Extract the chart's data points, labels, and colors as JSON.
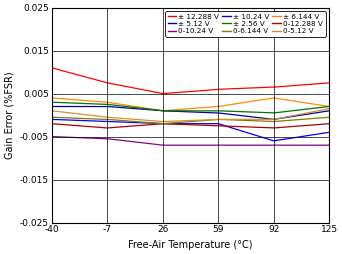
{
  "title": "",
  "xlabel": "Free-Air Temperature (°C)",
  "ylabel": "Gain Error (%FSR)",
  "xlim": [
    -40,
    125
  ],
  "ylim": [
    -0.025,
    0.025
  ],
  "xticks": [
    -40,
    -7,
    26,
    59,
    92,
    125
  ],
  "yticks": [
    -0.025,
    -0.015,
    -0.005,
    0.005,
    0.015,
    0.025
  ],
  "x_temps": [
    -40,
    -7,
    26,
    59,
    92,
    125
  ],
  "series": [
    {
      "label": "± 12.288 V",
      "color": "#ff0000",
      "y": [
        0.011,
        0.0075,
        0.005,
        0.006,
        0.0065,
        0.0075
      ]
    },
    {
      "label": "± 10.24 V",
      "color": "#0000ff",
      "y": [
        -0.001,
        -0.0015,
        -0.002,
        -0.002,
        -0.006,
        -0.004
      ]
    },
    {
      "label": "± 6.144 V",
      "color": "#ff8800",
      "y": [
        0.004,
        0.003,
        0.001,
        0.002,
        0.004,
        0.002
      ]
    },
    {
      "label": "± 5.12 V",
      "color": "#0000aa",
      "y": [
        0.002,
        0.002,
        0.001,
        0.0005,
        -0.001,
        0.001
      ]
    },
    {
      "label": "± 2.56 V",
      "color": "#007700",
      "y": [
        0.003,
        0.0025,
        0.001,
        0.001,
        0.0005,
        0.002
      ]
    },
    {
      "label": "0-12.288 V",
      "color": "#aa0000",
      "y": [
        -0.002,
        -0.003,
        -0.002,
        -0.0025,
        -0.003,
        -0.002
      ]
    },
    {
      "label": "0-10.24 V",
      "color": "#880088",
      "y": [
        -0.005,
        -0.0055,
        -0.007,
        -0.007,
        -0.007,
        -0.007
      ]
    },
    {
      "label": "0-6.144 V",
      "color": "#887700",
      "y": [
        -0.0005,
        -0.001,
        -0.002,
        -0.001,
        -0.0015,
        -0.0005
      ]
    },
    {
      "label": "0-5.12 V",
      "color": "#c8963c",
      "y": [
        0.001,
        -0.0005,
        -0.0015,
        -0.001,
        -0.001,
        0.0015
      ]
    }
  ],
  "legend_order": [
    [
      "± 12.288 V",
      "#ff0000"
    ],
    [
      "± 5.12 V",
      "#0000aa"
    ],
    [
      "0-10.24 V",
      "#880088"
    ],
    [
      "± 10.24 V",
      "#0000ff"
    ],
    [
      "± 2.56 V",
      "#007700"
    ],
    [
      "0-6.144 V",
      "#887700"
    ],
    [
      "± 6.144 V",
      "#ff8800"
    ],
    [
      "0-12.288 V",
      "#aa0000"
    ],
    [
      "0-5.12 V",
      "#c8963c"
    ]
  ],
  "legend_fontsize": 5.2,
  "tick_fontsize": 6.5,
  "label_fontsize": 7,
  "background_color": "#ffffff"
}
